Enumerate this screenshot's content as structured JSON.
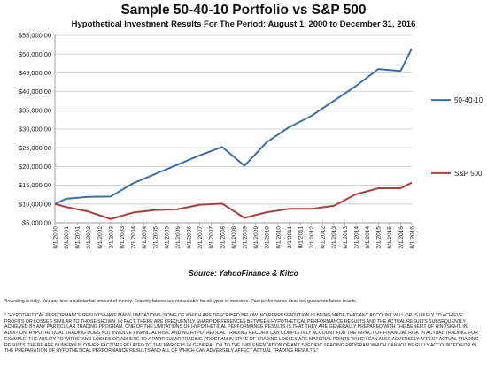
{
  "header": {
    "title": "Sample 50-40-10 Portfolio vs S&P 500",
    "subtitle": "Hypothetical Investment  Results For The Period: August 1, 2000 to  December 31, 2016"
  },
  "source": "Source: YahooFinance & Kitco",
  "disclaimers": {
    "line1": "*Investing is risky. You can lose a substantial amount of money. Security futures are not suitable for all types of investors. Past performance does not guarantee future results.",
    "block": "* \"HYPOTHETICAL PERFORMANCE RESULTS HAVE MANY LIMITATIONS, SOME OF WHICH ARE DESCRIBED BELOW. NO REPRESENTATION IS BEING MADE THAT ANY ACCOUNT WILL OR IS LIKELY TO ACHIEVE PROFITS OR LOSSES SIMILAR TO THOSE SHOWN. IN FACT, THERE ARE FREQUENTLY SHARP DIFFERENCES BETWEEN HYPOTHETICAL PERFORMANCE RESULTS AND THE ACTUAL RESULTS SUBSEQUENTLY ACHIEVED BY ANY PARTICULAR TRADING PROGRAM. ONE OF THE LIMITATIONS OF HYPOTHETICAL PERFORMANCE RESULTS IS THAT THEY ARE GENERALLY PREPARED WITH THE BENEFIT OF HINDSIGHT. IN ADDITION, HYPOTHETICAL TRADING DOES NOT INVOLVE FINANCIAL RISK, AND NO HYPOTHETICAL TRADING RECORD CAN COMPLETELY ACCOUNT FOR THE IMPACT OF FINANCIAL RISK IN ACTUAL TRADING. FOR EXAMPLE, THE ABILITY TO WITHSTAND LOSSES OR ADHERE TO A PARTICULAR TRADING PROGRAM IN SPITE OF TRADING LOSSES ARE MATERIAL POINTS WHICH CAN ALSO ADVERSELY AFFECT ACTUAL TRADING RESULTS. THERE ARE NUMEROUS OTHER FACTORS RELATED TO THE MARKETS IN GENERAL OR TO THE IMPLEMENTATION OF ANY SPECIFIC TRADING PROGRAM WHICH CANNOT BE FULLY ACCOUNTED FOR IN THE PREPARATION OF HYPOTHETICAL PERFORMANCE RESULTS AND ALL OF WHICH CAN ADVERSELY AFFECT ACTUAL TRADING RESULTS.\""
  },
  "colors": {
    "series_50_40_10": "#3c6fa6",
    "series_sp500": "#a6403a",
    "grid": "#c8c8c8",
    "axis": "#888888"
  },
  "chart_data": {
    "type": "line",
    "title": "Sample 50-40-10 Portfolio vs S&P 500",
    "subtitle": "Hypothetical Investment  Results For The Period: August 1, 2000 to  December 31, 2016",
    "xlabel": "",
    "ylabel": "",
    "ylim": [
      5000,
      55000
    ],
    "yticks": [
      5000,
      10000,
      15000,
      20000,
      25000,
      30000,
      35000,
      40000,
      45000,
      50000,
      55000
    ],
    "ytick_labels": [
      "$5,000.00",
      "$10,000.00",
      "$15,000.00",
      "$20,000.00",
      "$25,000.00",
      "$30,000.00",
      "$35,000.00",
      "$40,000.00",
      "$45,000.00",
      "$50,000.00",
      "$55,000.00"
    ],
    "grid": true,
    "legend": "right",
    "categories": [
      "8/1/2000",
      "2/1/2001",
      "8/1/2001",
      "2/1/2002",
      "8/1/2002",
      "2/1/2003",
      "8/1/2003",
      "2/1/2004",
      "8/1/2004",
      "2/1/2005",
      "8/1/2005",
      "2/1/2006",
      "8/1/2006",
      "2/1/2007",
      "8/1/2007",
      "2/1/2008",
      "8/1/2008",
      "2/1/2009",
      "8/1/2009",
      "2/1/2010",
      "8/1/2010",
      "2/1/2011",
      "8/1/2011",
      "2/1/2012",
      "8/1/2012",
      "2/1/2013",
      "8/1/2013",
      "2/1/2014",
      "8/1/2014",
      "2/1/2015",
      "8/1/2015",
      "2/1/2016",
      "8/1/2016"
    ],
    "series": [
      {
        "name": "50-40-10",
        "points": [
          [
            "8/1/2000",
            10000
          ],
          [
            "2/1/2001",
            11400
          ],
          [
            "2/1/2002",
            11900
          ],
          [
            "2/1/2003",
            12000
          ],
          [
            "2/1/2004",
            15500
          ],
          [
            "2/1/2005",
            18000
          ],
          [
            "2/1/2006",
            20500
          ],
          [
            "2/1/2007",
            23000
          ],
          [
            "2/1/2008",
            25200
          ],
          [
            "2/1/2009",
            20200
          ],
          [
            "2/1/2010",
            26500
          ],
          [
            "2/1/2011",
            30500
          ],
          [
            "2/1/2012",
            33500
          ],
          [
            "2/1/2013",
            37500
          ],
          [
            "2/1/2014",
            41500
          ],
          [
            "2/1/2015",
            46000
          ],
          [
            "2/1/2016",
            45500
          ],
          [
            "8/1/2016",
            51500
          ]
        ]
      },
      {
        "name": "S&P 500",
        "points": [
          [
            "8/1/2000",
            10000
          ],
          [
            "2/1/2001",
            9200
          ],
          [
            "2/1/2002",
            8000
          ],
          [
            "2/1/2003",
            6000
          ],
          [
            "2/1/2004",
            7700
          ],
          [
            "2/1/2005",
            8400
          ],
          [
            "2/1/2006",
            8600
          ],
          [
            "2/1/2007",
            9800
          ],
          [
            "2/1/2008",
            10100
          ],
          [
            "2/1/2009",
            6300
          ],
          [
            "2/1/2010",
            7800
          ],
          [
            "2/1/2011",
            8700
          ],
          [
            "2/1/2012",
            8700
          ],
          [
            "2/1/2013",
            9500
          ],
          [
            "2/1/2014",
            12600
          ],
          [
            "2/1/2015",
            14200
          ],
          [
            "2/1/2016",
            14200
          ],
          [
            "8/1/2016",
            15700
          ]
        ]
      }
    ]
  }
}
